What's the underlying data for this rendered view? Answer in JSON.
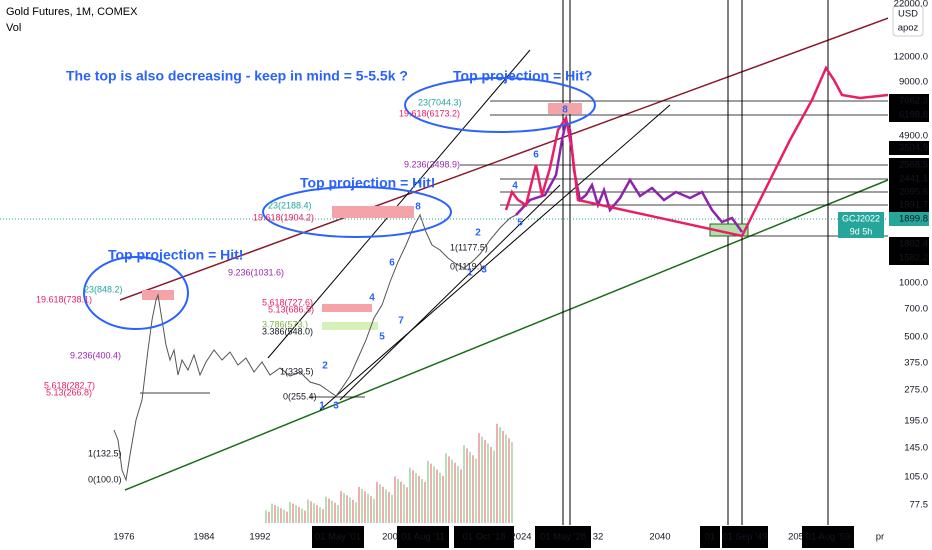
{
  "header": {
    "symbol": "Gold Futures, 1M, COMEX",
    "volume": "Vol"
  },
  "price_axis": {
    "currency": "USD",
    "mode": "apoz",
    "labels": [
      "22000.0",
      "12000.0",
      "9000.0",
      "7062.3",
      "6198.8",
      "4900.0",
      "3504.9",
      "2568.5",
      "2441.1",
      "2095.6",
      "1991.7",
      "1899.8",
      "1802.4",
      "1582.2",
      "1000.0",
      "700.0",
      "500.0",
      "375.0",
      "275.0",
      "195.0",
      "145.0",
      "105.0",
      "77.5"
    ],
    "badge": {
      "symbol": "GCJ2022",
      "countdown": "9d 5h"
    }
  },
  "time_axis": {
    "labels": [
      "1976",
      "1984",
      "1992",
      "200",
      "2024",
      "32",
      "2040",
      "205",
      "pr"
    ],
    "markers": [
      "01 May '01",
      "01 Aug '11",
      "01 Oct '18",
      "01 May '28",
      "01",
      "01 Sep '49",
      "01 Aug '59"
    ]
  },
  "annotations": [
    "The top is also decreasing - keep in mind = 5-5.5k ?",
    "Top projection = Hit?",
    "Top projection = Hit!",
    "Top projection = Hit!"
  ],
  "fib_labels": [
    "23(848.2)",
    "19.618(738.1)",
    "9.236(400.4)",
    "5.618(282.7)",
    "5.13(266.8)",
    "1(132.5)",
    "0(100.0)",
    "23(2188.4)",
    "19.618(1904.2)",
    "9.236(1031.6)",
    "5.618(727.6)",
    "5.13(686.5)",
    "3.786(573.)",
    "3.386(548.0)",
    "1(339.5)",
    "0(255.4)",
    "23(7044.3)",
    "19.618(6173.2)",
    "9.236(3498.9)",
    "1(1177.5)",
    "0(1119.)"
  ],
  "wave_labels": [
    "2",
    "1",
    "3",
    "4",
    "5",
    "6",
    "7",
    "8",
    "2",
    "1",
    "3",
    "4",
    "5",
    "6",
    "8"
  ]
}
